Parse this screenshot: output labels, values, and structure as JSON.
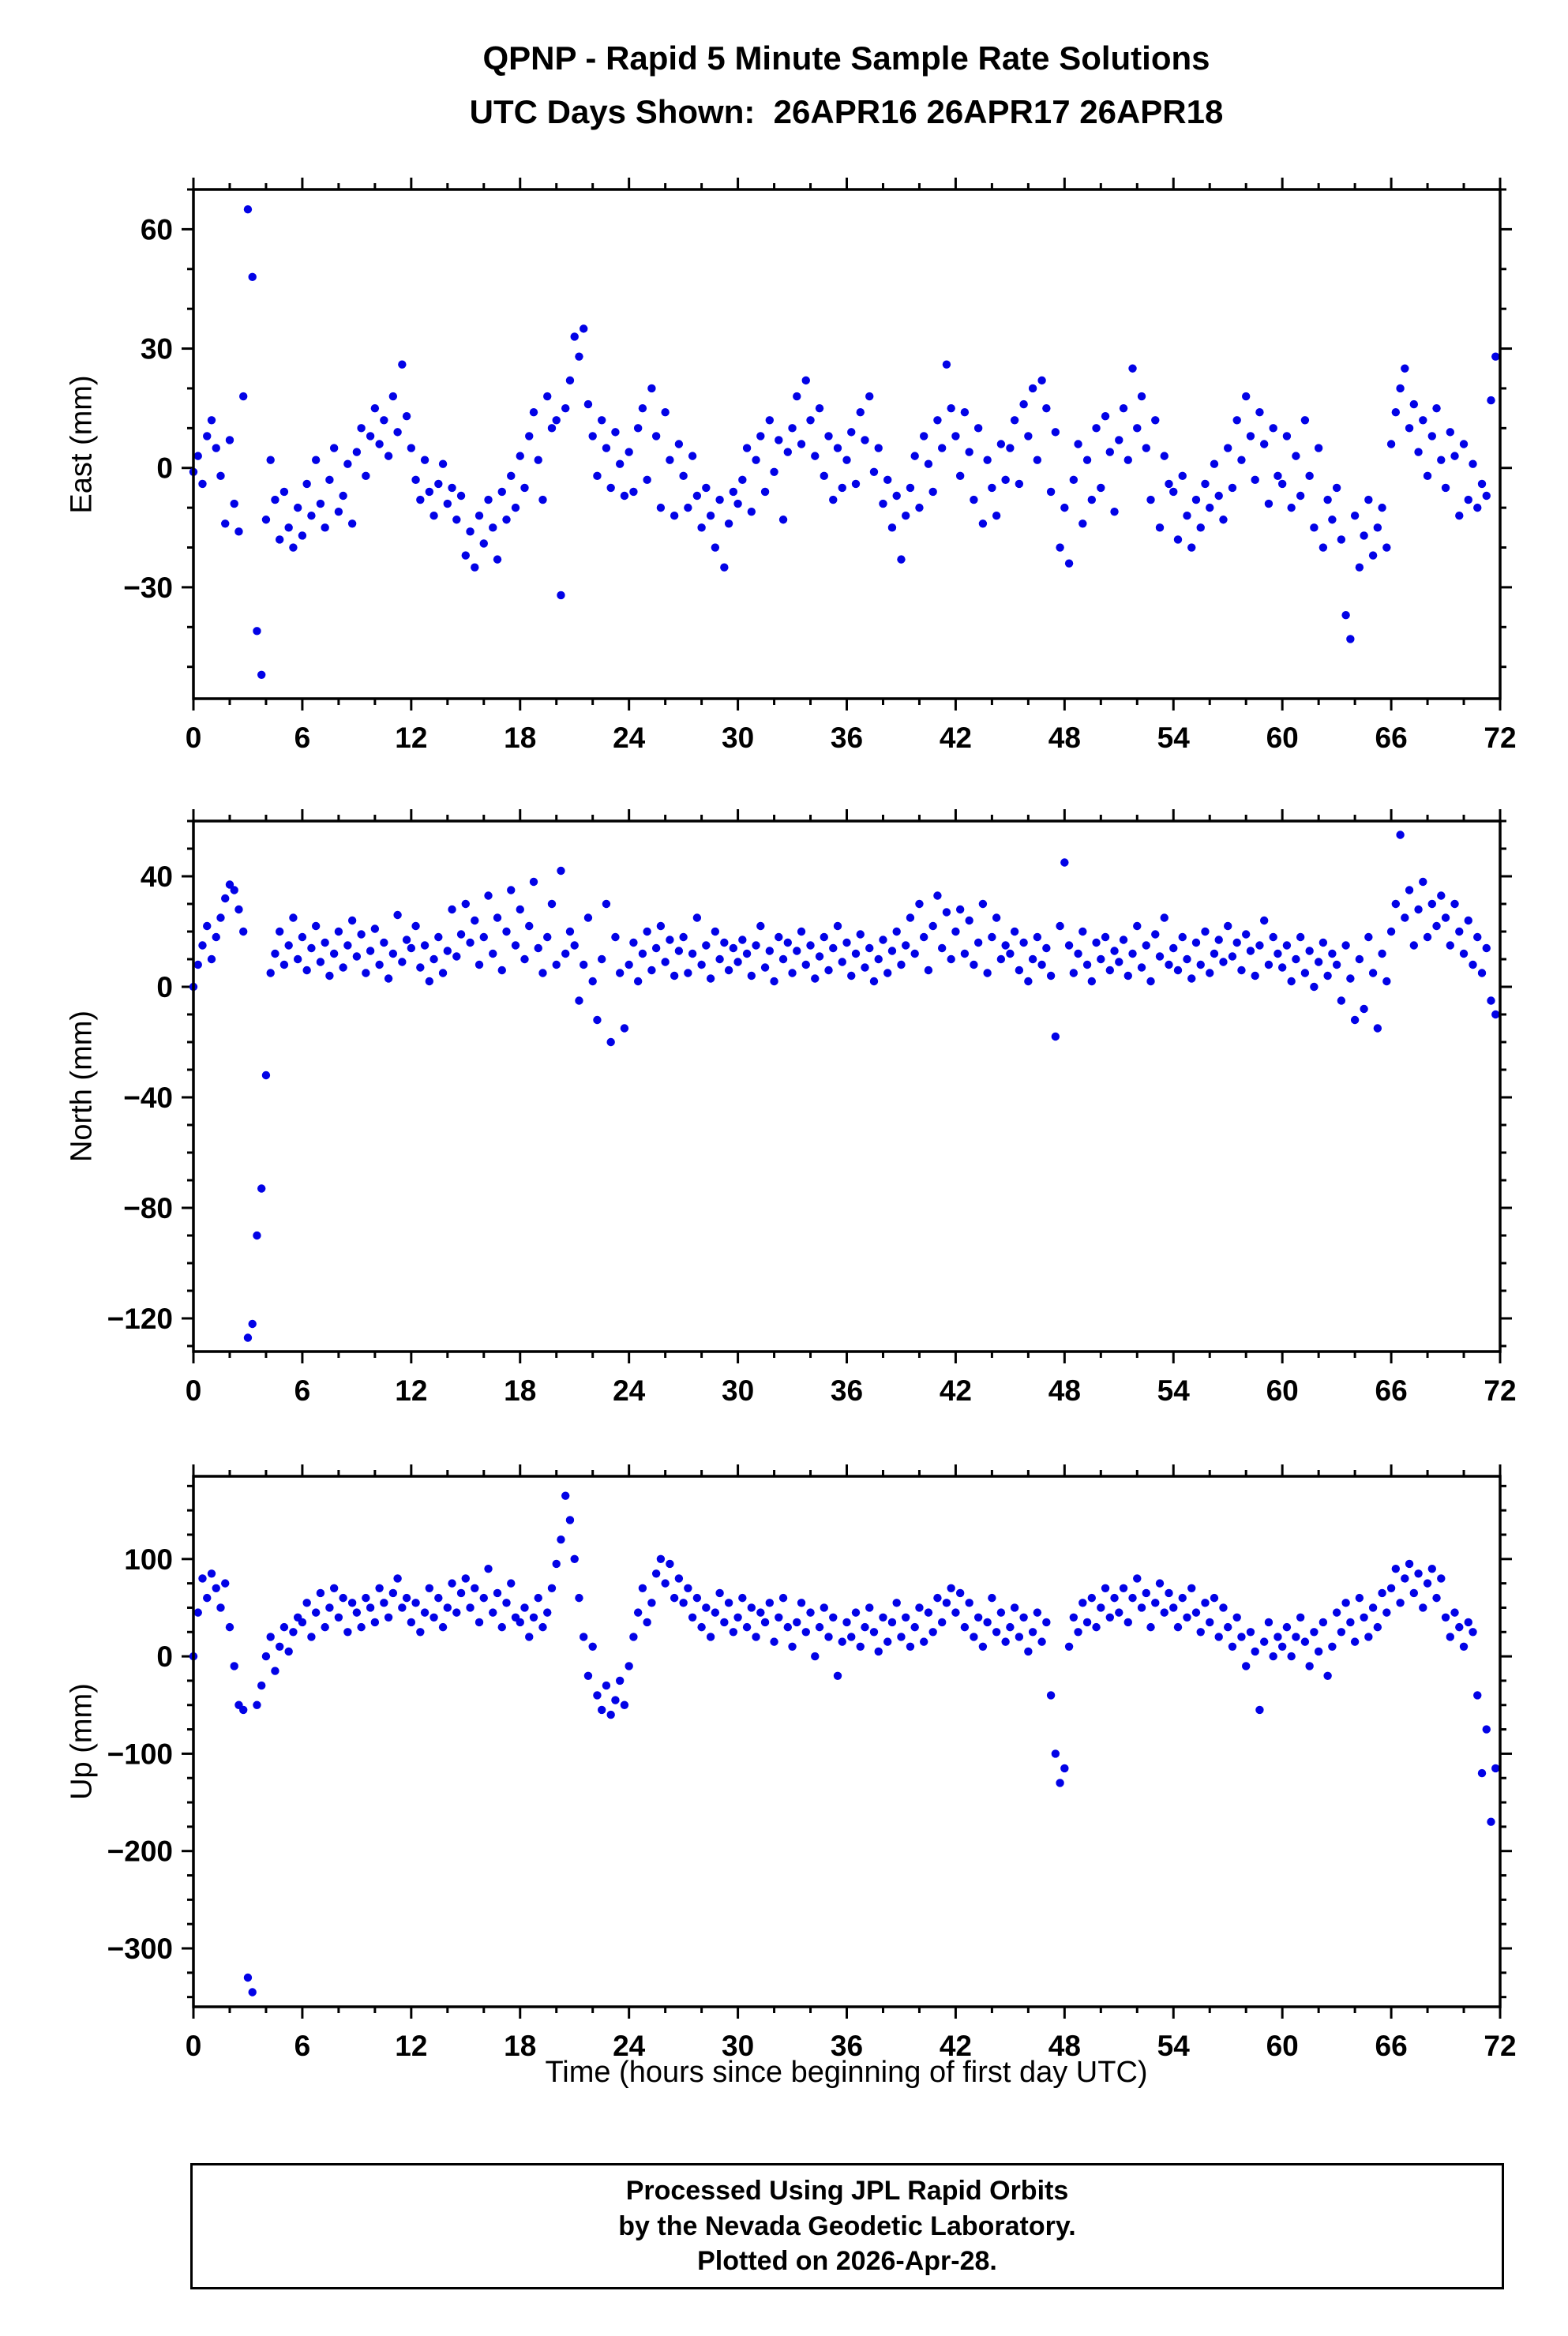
{
  "title": "QPNP - Rapid 5 Minute Sample Rate Solutions",
  "subtitle": "UTC Days Shown:  26APR16 26APR17 26APR18",
  "xlabel": "Time (hours since beginning of first day UTC)",
  "footer": {
    "lines": [
      "Processed Using JPL Rapid Orbits",
      "by the Nevada Geodetic Laboratory.",
      "Plotted on 2026-Apr-28."
    ]
  },
  "colors": {
    "dot": "#0202e6",
    "frame": "#000000"
  },
  "chart_data": [
    {
      "type": "scatter",
      "ylabel": "East (mm)",
      "xlim": [
        0,
        72
      ],
      "xticks": [
        0,
        6,
        12,
        18,
        24,
        30,
        36,
        42,
        48,
        54,
        60,
        66,
        72
      ],
      "x_minor_step": 2,
      "ylim": [
        -58,
        70
      ],
      "yticks": [
        -30,
        0,
        30,
        60
      ],
      "y_minor_step": 10,
      "x_start": 0,
      "x_step": 0.25,
      "y": [
        -1,
        3,
        -4,
        8,
        12,
        5,
        -2,
        -14,
        7,
        -9,
        -16,
        18,
        65,
        48,
        -41,
        -52,
        -13,
        2,
        -8,
        -18,
        -6,
        -15,
        -20,
        -10,
        -17,
        -4,
        -12,
        2,
        -9,
        -15,
        -3,
        5,
        -11,
        -7,
        1,
        -14,
        4,
        10,
        -2,
        8,
        15,
        6,
        12,
        3,
        18,
        9,
        26,
        13,
        5,
        -3,
        -8,
        2,
        -6,
        -12,
        -4,
        1,
        -9,
        -5,
        -13,
        -7,
        -22,
        -16,
        -25,
        -12,
        -19,
        -8,
        -15,
        -23,
        -6,
        -13,
        -2,
        -10,
        3,
        -5,
        8,
        14,
        2,
        -8,
        18,
        10,
        12,
        -32,
        15,
        22,
        33,
        28,
        35,
        16,
        8,
        -2,
        12,
        5,
        -5,
        9,
        1,
        -7,
        4,
        -6,
        10,
        15,
        -3,
        20,
        8,
        -10,
        14,
        2,
        -12,
        6,
        -2,
        -10,
        3,
        -7,
        -15,
        -5,
        -12,
        -20,
        -8,
        -25,
        -14,
        -6,
        -9,
        -3,
        5,
        -11,
        2,
        8,
        -6,
        12,
        -1,
        7,
        -13,
        4,
        10,
        18,
        6,
        22,
        12,
        3,
        15,
        -2,
        8,
        -8,
        5,
        -5,
        2,
        9,
        -4,
        14,
        7,
        18,
        -1,
        5,
        -9,
        -3,
        -15,
        -7,
        -23,
        -12,
        -5,
        3,
        -10,
        8,
        1,
        -6,
        12,
        5,
        26,
        15,
        8,
        -2,
        14,
        4,
        -8,
        10,
        -14,
        2,
        -5,
        -12,
        6,
        -3,
        5,
        12,
        -4,
        16,
        8,
        20,
        2,
        22,
        15,
        -6,
        9,
        -20,
        -10,
        -24,
        -3,
        6,
        -14,
        2,
        -8,
        10,
        -5,
        13,
        4,
        -11,
        7,
        15,
        2,
        25,
        10,
        18,
        5,
        -8,
        12,
        -15,
        3,
        -4,
        -6,
        -18,
        -2,
        -12,
        -20,
        -8,
        -15,
        -4,
        -10,
        1,
        -7,
        -13,
        5,
        -5,
        12,
        2,
        18,
        8,
        -3,
        14,
        6,
        -9,
        10,
        -2,
        -4,
        8,
        -10,
        3,
        -7,
        12,
        -2,
        -15,
        5,
        -20,
        -8,
        -13,
        -5,
        -18,
        -37,
        -43,
        -12,
        -25,
        -17,
        -8,
        -22,
        -15,
        -10,
        -20,
        6,
        14,
        20,
        25,
        10,
        16,
        4,
        12,
        -2,
        8,
        15,
        2,
        -5,
        9,
        3,
        -12,
        6,
        -8,
        1,
        -10,
        -4,
        -7,
        17,
        28
      ]
    },
    {
      "type": "scatter",
      "ylabel": "North (mm)",
      "xlim": [
        0,
        72
      ],
      "xticks": [
        0,
        6,
        12,
        18,
        24,
        30,
        36,
        42,
        48,
        54,
        60,
        66,
        72
      ],
      "x_minor_step": 2,
      "ylim": [
        -132,
        60
      ],
      "yticks": [
        -120,
        -80,
        -40,
        0,
        40
      ],
      "y_minor_step": 10,
      "x_start": 0,
      "x_step": 0.25,
      "y": [
        0,
        8,
        15,
        22,
        10,
        18,
        25,
        32,
        37,
        35,
        28,
        20,
        -127,
        -122,
        -90,
        -73,
        -32,
        5,
        12,
        20,
        8,
        15,
        25,
        10,
        18,
        6,
        14,
        22,
        9,
        16,
        4,
        12,
        20,
        7,
        15,
        24,
        11,
        19,
        5,
        13,
        21,
        8,
        16,
        3,
        12,
        26,
        9,
        17,
        14,
        22,
        7,
        15,
        2,
        10,
        18,
        5,
        13,
        28,
        11,
        19,
        30,
        16,
        24,
        8,
        18,
        33,
        12,
        25,
        6,
        20,
        35,
        15,
        28,
        10,
        22,
        38,
        14,
        5,
        18,
        30,
        8,
        42,
        12,
        20,
        15,
        -5,
        8,
        25,
        2,
        -12,
        10,
        30,
        -20,
        18,
        5,
        -15,
        8,
        16,
        2,
        12,
        20,
        6,
        14,
        22,
        9,
        17,
        4,
        13,
        18,
        5,
        12,
        25,
        8,
        15,
        3,
        20,
        10,
        16,
        6,
        14,
        9,
        17,
        12,
        4,
        15,
        22,
        7,
        13,
        2,
        18,
        10,
        16,
        5,
        13,
        20,
        8,
        15,
        3,
        11,
        18,
        6,
        14,
        22,
        9,
        16,
        4,
        12,
        19,
        7,
        14,
        2,
        10,
        17,
        5,
        13,
        20,
        8,
        15,
        25,
        12,
        30,
        18,
        6,
        22,
        33,
        14,
        27,
        10,
        20,
        28,
        12,
        24,
        8,
        16,
        30,
        5,
        18,
        25,
        10,
        15,
        12,
        20,
        6,
        16,
        2,
        10,
        18,
        8,
        14,
        4,
        -18,
        22,
        45,
        15,
        5,
        12,
        20,
        8,
        2,
        16,
        10,
        18,
        6,
        13,
        9,
        17,
        4,
        12,
        22,
        7,
        15,
        2,
        19,
        11,
        25,
        8,
        14,
        6,
        18,
        10,
        3,
        16,
        8,
        20,
        5,
        12,
        17,
        9,
        22,
        11,
        16,
        6,
        19,
        13,
        4,
        15,
        24,
        8,
        18,
        12,
        7,
        15,
        2,
        10,
        18,
        5,
        13,
        0,
        9,
        16,
        4,
        12,
        8,
        -5,
        15,
        3,
        -12,
        10,
        -8,
        18,
        5,
        -15,
        12,
        2,
        20,
        30,
        55,
        25,
        35,
        15,
        28,
        38,
        18,
        30,
        22,
        33,
        25,
        15,
        30,
        20,
        12,
        24,
        8,
        18,
        5,
        14,
        -5,
        -10
      ]
    },
    {
      "type": "scatter",
      "ylabel": "Up (mm)",
      "xlim": [
        0,
        72
      ],
      "xticks": [
        0,
        6,
        12,
        18,
        24,
        30,
        36,
        42,
        48,
        54,
        60,
        66,
        72
      ],
      "x_minor_step": 2,
      "ylim": [
        -360,
        185
      ],
      "yticks": [
        -300,
        -200,
        -100,
        0,
        100
      ],
      "y_minor_step": 25,
      "x_start": 0,
      "x_step": 0.25,
      "y": [
        0,
        45,
        80,
        60,
        85,
        70,
        50,
        75,
        30,
        -10,
        -50,
        -55,
        -330,
        -345,
        -50,
        -30,
        0,
        20,
        -15,
        10,
        30,
        5,
        25,
        40,
        35,
        55,
        20,
        45,
        65,
        30,
        50,
        70,
        40,
        60,
        25,
        55,
        45,
        30,
        60,
        50,
        35,
        70,
        55,
        40,
        65,
        80,
        50,
        60,
        35,
        55,
        25,
        45,
        70,
        40,
        60,
        30,
        50,
        75,
        45,
        65,
        80,
        50,
        70,
        35,
        60,
        90,
        45,
        65,
        30,
        55,
        75,
        40,
        35,
        50,
        20,
        40,
        60,
        30,
        45,
        70,
        95,
        120,
        165,
        140,
        100,
        60,
        20,
        -20,
        10,
        -40,
        -55,
        -30,
        -60,
        -45,
        -25,
        -50,
        -10,
        20,
        45,
        70,
        35,
        55,
        85,
        100,
        75,
        95,
        60,
        80,
        55,
        70,
        40,
        60,
        30,
        50,
        20,
        45,
        65,
        35,
        55,
        25,
        40,
        60,
        30,
        50,
        20,
        45,
        35,
        55,
        15,
        40,
        60,
        30,
        10,
        35,
        55,
        25,
        45,
        0,
        30,
        50,
        20,
        40,
        -20,
        15,
        35,
        20,
        45,
        10,
        30,
        50,
        25,
        5,
        40,
        15,
        35,
        55,
        20,
        40,
        10,
        30,
        50,
        15,
        45,
        25,
        60,
        35,
        55,
        70,
        45,
        65,
        30,
        55,
        20,
        40,
        10,
        35,
        60,
        25,
        45,
        15,
        30,
        50,
        20,
        40,
        5,
        25,
        45,
        15,
        35,
        -40,
        -100,
        -130,
        -115,
        10,
        40,
        25,
        55,
        35,
        60,
        30,
        50,
        70,
        40,
        60,
        45,
        70,
        35,
        60,
        80,
        50,
        65,
        30,
        55,
        75,
        45,
        65,
        50,
        30,
        60,
        40,
        70,
        45,
        25,
        55,
        35,
        60,
        20,
        50,
        30,
        10,
        40,
        20,
        -10,
        25,
        5,
        -55,
        15,
        35,
        0,
        20,
        10,
        30,
        0,
        20,
        40,
        15,
        -10,
        25,
        5,
        35,
        -20,
        10,
        45,
        25,
        55,
        35,
        15,
        60,
        40,
        20,
        50,
        30,
        65,
        45,
        70,
        90,
        55,
        80,
        95,
        65,
        85,
        50,
        75,
        90,
        60,
        80,
        40,
        20,
        45,
        30,
        10,
        35,
        25,
        -40,
        -120,
        -75,
        -170,
        -115
      ]
    }
  ]
}
